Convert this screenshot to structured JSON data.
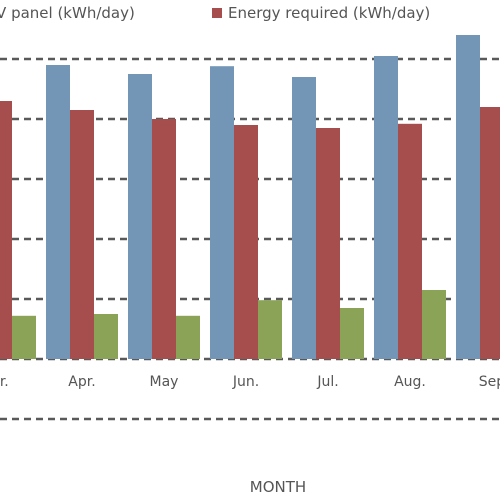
{
  "chart_data": {
    "type": "bar",
    "categories": [
      "ar.",
      "Apr.",
      "May",
      "Jun.",
      "Jul.",
      "Aug.",
      "Sep"
    ],
    "series": [
      {
        "name": "PV panel (kWh/day)",
        "color": "#7396B7",
        "values": [
          null,
          4.9,
          4.75,
          4.88,
          4.7,
          5.05,
          5.4
        ]
      },
      {
        "name": "Energy required (kWh/day)",
        "color": "#A64E4E",
        "values": [
          4.3,
          4.15,
          4.0,
          3.9,
          3.85,
          3.92,
          4.2
        ]
      },
      {
        "name": "",
        "color": "#8AA356",
        "values": [
          0.72,
          0.75,
          0.72,
          0.98,
          0.85,
          1.15,
          null
        ]
      }
    ],
    "ylim": [
      -1,
      5.5
    ],
    "grid": true,
    "xlabel": "MONTH",
    "ylabel": "",
    "legend_position": "top"
  }
}
